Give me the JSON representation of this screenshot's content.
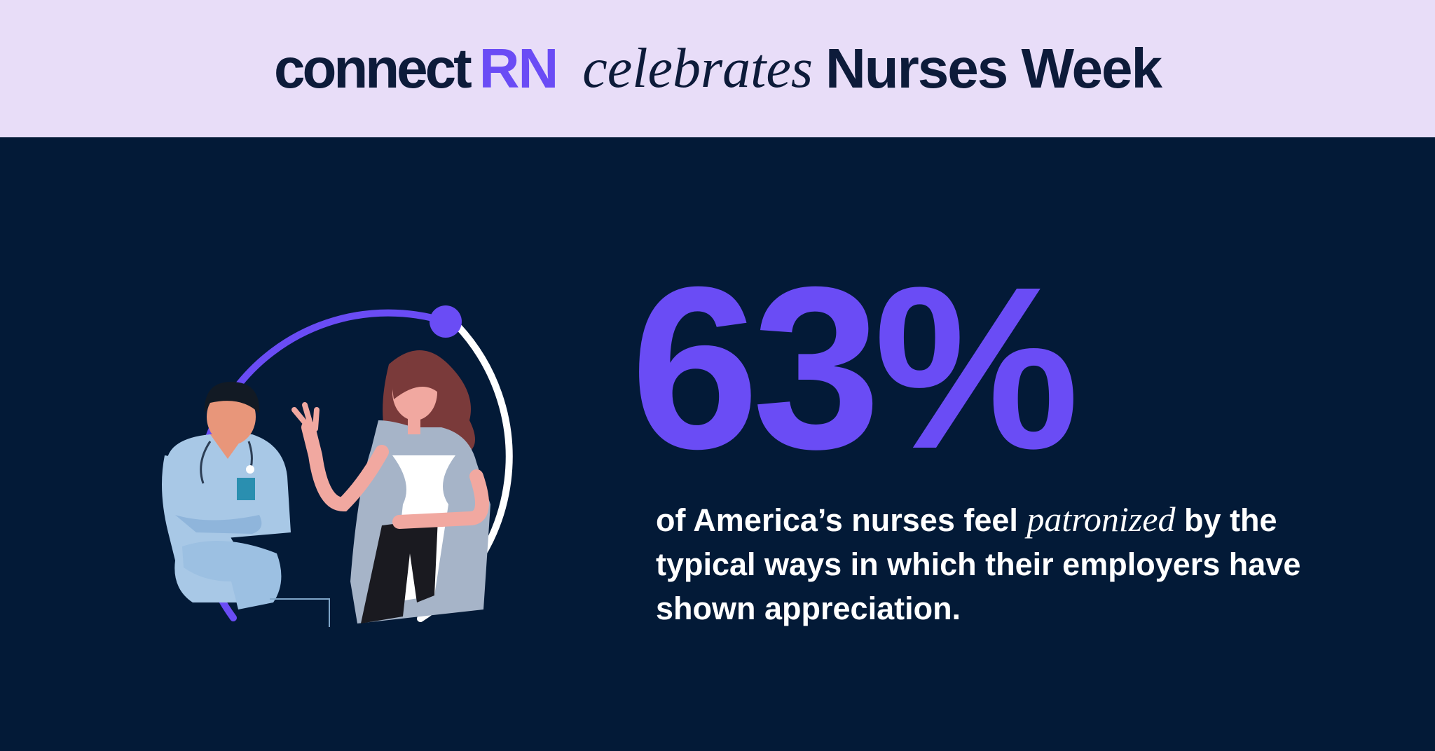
{
  "header": {
    "brand": "connect",
    "brand_suffix": "RN",
    "tagline_italic": "celebrates",
    "tagline": "Nurses Week"
  },
  "stat": {
    "value": "63%",
    "description": {
      "before": "of America’s nurses feel",
      "emphasis": "patronized",
      "after": "by the typical ways in which their employers have shown appreciation."
    }
  }
}
